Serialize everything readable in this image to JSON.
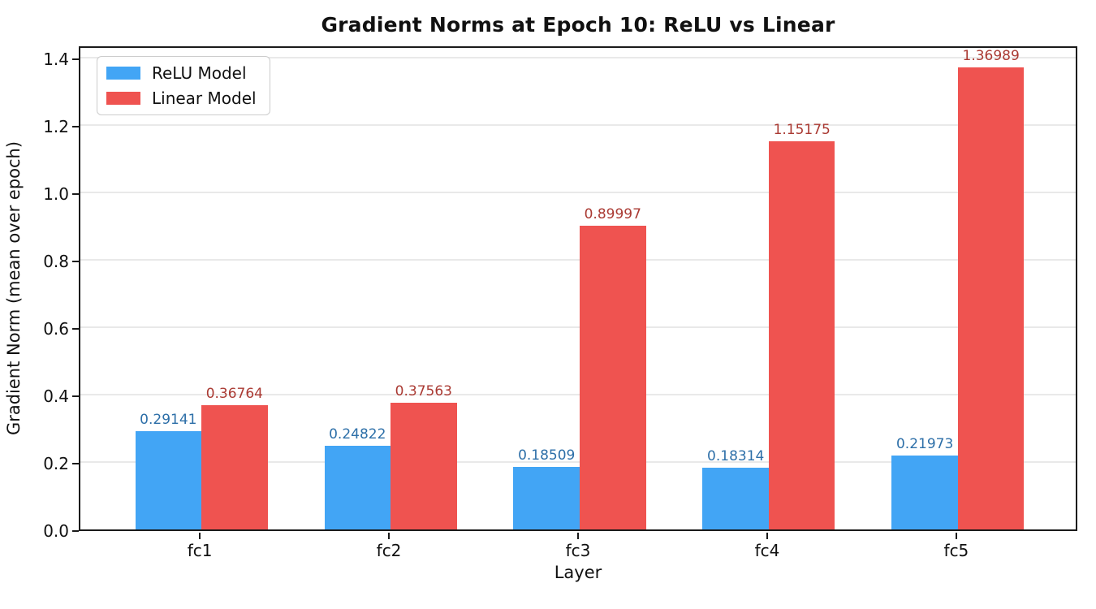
{
  "chart_data": {
    "type": "bar",
    "title": "Gradient Norms at Epoch 10: ReLU vs Linear",
    "xlabel": "Layer",
    "ylabel": "Gradient Norm (mean over epoch)",
    "categories": [
      "fc1",
      "fc2",
      "fc3",
      "fc4",
      "fc5"
    ],
    "series": [
      {
        "name": "ReLU Model",
        "color": "#42A5F5",
        "label_color": "#2D6FA8",
        "values": [
          0.29141,
          0.24822,
          0.18509,
          0.18314,
          0.21973
        ],
        "value_labels": [
          "0.29141",
          "0.24822",
          "0.18509",
          "0.18314",
          "0.21973"
        ]
      },
      {
        "name": "Linear Model",
        "color": "#EF5350",
        "label_color": "#AA3A33",
        "values": [
          0.36764,
          0.37563,
          0.89997,
          1.15175,
          1.36989
        ],
        "value_labels": [
          "0.36764",
          "0.37563",
          "0.89997",
          "1.15175",
          "1.36989"
        ]
      }
    ],
    "ylim": [
      0,
      1.438
    ],
    "xlim": [
      -0.64,
      4.64
    ],
    "yticks": [
      0.0,
      0.2,
      0.4,
      0.6,
      0.8,
      1.0,
      1.2,
      1.4
    ],
    "bar_width": 0.35,
    "grid": true,
    "legend_position": "upper left",
    "colors": {
      "grid": "#e9e9e9",
      "spine": "#1a1a1a",
      "text": "#111111",
      "background": "#ffffff"
    }
  }
}
